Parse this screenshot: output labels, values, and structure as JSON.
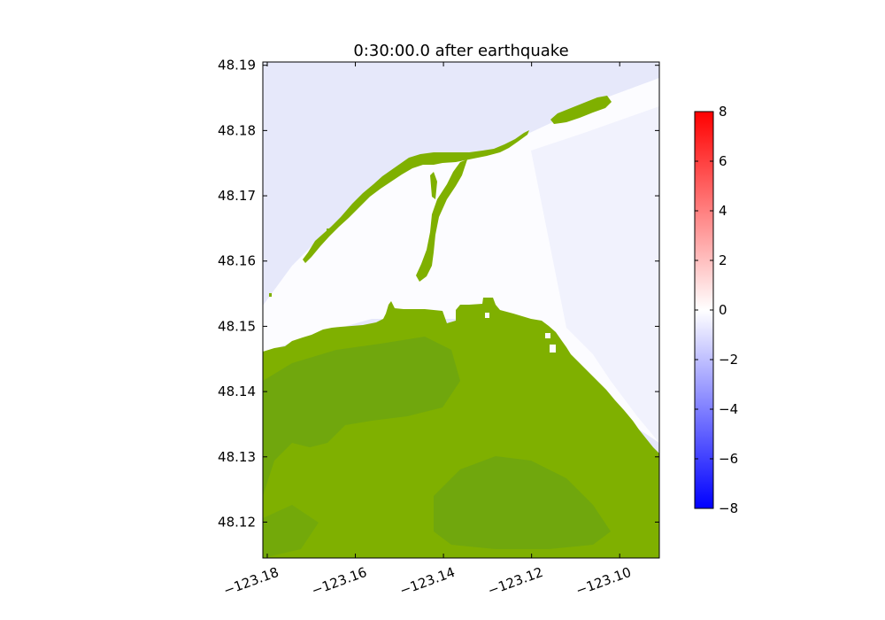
{
  "chart_data": {
    "type": "heatmap",
    "title": "0:30:00.0 after earthquake",
    "xlabel": "",
    "ylabel": "",
    "xlim": [
      -123.181,
      -123.091
    ],
    "ylim": [
      48.1145,
      48.1905
    ],
    "x_ticks": [
      -123.18,
      -123.16,
      -123.14,
      -123.12,
      -123.1
    ],
    "x_tick_labels": [
      "−123.18",
      "−123.16",
      "−123.14",
      "−123.12",
      "−123.10"
    ],
    "y_ticks": [
      48.12,
      48.13,
      48.14,
      48.15,
      48.16,
      48.17,
      48.18,
      48.19
    ],
    "y_tick_labels": [
      "48.12",
      "48.13",
      "48.14",
      "48.15",
      "48.16",
      "48.17",
      "48.18",
      "48.19"
    ],
    "colorbar": {
      "range": [
        -8,
        8
      ],
      "ticks": [
        -8,
        -6,
        -4,
        -2,
        0,
        2,
        4,
        6,
        8
      ],
      "tick_labels": [
        "−8",
        "−6",
        "−4",
        "−2",
        "0",
        "2",
        "4",
        "6",
        "8"
      ],
      "colormap": "bwr"
    },
    "colors": {
      "land": "#7fb000",
      "land_dark": "#6aa412",
      "water_offshore": "#e6e8fa",
      "water_nearshore": "#fcfcff"
    }
  }
}
